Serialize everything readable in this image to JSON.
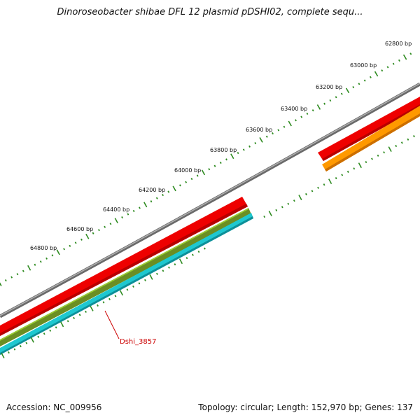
{
  "title": "Dinoroseobacter shibae DFL 12 plasmid pDSHI02, complete sequ...",
  "ticks": [
    "62800 bp",
    "63000 bp",
    "63200 bp",
    "63400 bp",
    "63600 bp",
    "63800 bp",
    "64000 bp",
    "64200 bp",
    "64400 bp",
    "64600 bp",
    "64800 bp"
  ],
  "gene_label": "Dshi_3857",
  "footer": {
    "accession": "Accession: NC_009956",
    "summary": "Topology: circular; Length: 152,970 bp; Genes: 137"
  },
  "colors": {
    "backbone": "#808080",
    "cds_red": "#ee0000",
    "cds_orange": "#ff9900",
    "cds_olive": "#6b8e23",
    "cds_cyan": "#1ec8d0",
    "tick": "#2e8b20",
    "label": "#cc0000"
  }
}
